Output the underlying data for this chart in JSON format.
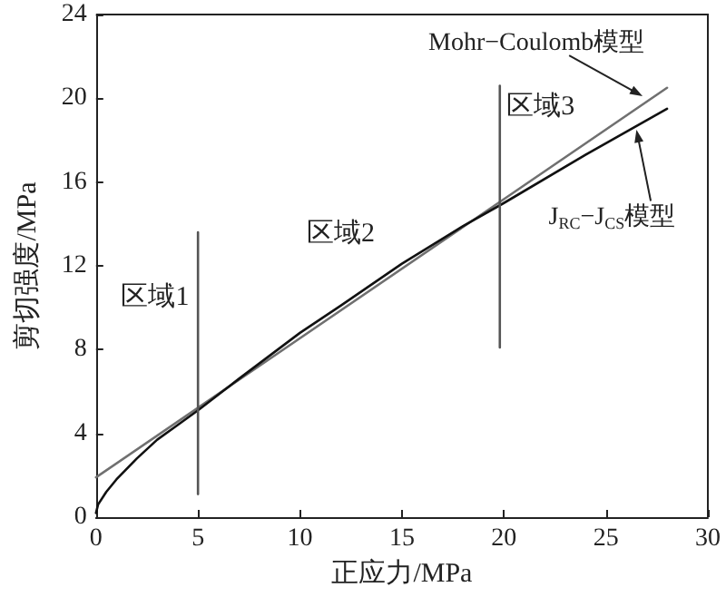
{
  "chart_data": {
    "type": "line",
    "xlabel": "正应力/MPa",
    "ylabel": "剪切强度/MPa",
    "xlim": [
      0,
      30
    ],
    "xticks": [
      0,
      5,
      10,
      15,
      20,
      25,
      30
    ],
    "ylim": [
      0,
      24
    ],
    "yticks": [
      0,
      4,
      8,
      12,
      16,
      20,
      24
    ],
    "grid": false,
    "legend": false,
    "marker": "none",
    "line_style": "solid",
    "annotations": [
      "区域1",
      "区域2",
      "区域3"
    ],
    "series": [
      {
        "name": "Mohr−Coulomb模型",
        "color": "#707070",
        "x": [
          0,
          28
        ],
        "values": [
          1.9,
          20.5
        ]
      },
      {
        "name": "J$_{RC}$−J$_{CS}$模型",
        "color": "#111111",
        "x": [
          0,
          0.1,
          0.5,
          1,
          2,
          3,
          4,
          5,
          7,
          10,
          12,
          15,
          18,
          20,
          24,
          28
        ],
        "values": [
          0.2,
          0.6,
          1.2,
          1.8,
          2.8,
          3.7,
          4.4,
          5.1,
          6.6,
          8.8,
          10.1,
          12.1,
          13.9,
          15.0,
          17.3,
          19.5
        ]
      },
      {
        "color": "#555555",
        "x": [
          5,
          5
        ],
        "values": [
          1.1,
          13.6
        ]
      },
      {
        "color": "#555555",
        "x": [
          19.8,
          19.8
        ],
        "values": [
          8.1,
          20.6
        ]
      }
    ]
  }
}
